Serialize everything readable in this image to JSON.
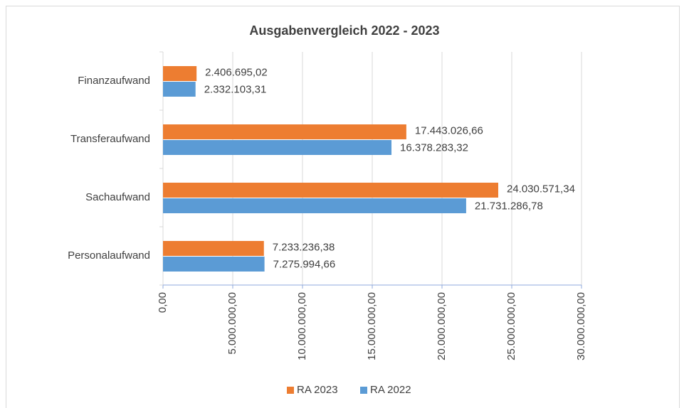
{
  "chart_data": {
    "type": "barh",
    "title": "Ausgabenvergleich 2022 - 2023",
    "categories": [
      "Personalaufwand",
      "Sachaufwand",
      "Transferaufwand",
      "Finanzaufwand"
    ],
    "series": [
      {
        "name": "RA 2023",
        "color": "#ed7d31",
        "values": [
          7233236.38,
          24030571.34,
          17443026.66,
          2406695.02
        ],
        "value_labels": [
          "7.233.236,38",
          "24.030.571,34",
          "17.443.026,66",
          "2.406.695,02"
        ]
      },
      {
        "name": "RA 2022",
        "color": "#5b9bd5",
        "values": [
          7275994.66,
          21731286.78,
          16378283.32,
          2332103.31
        ],
        "value_labels": [
          "7.275.994,66",
          "21.731.286,78",
          "16.378.283,32",
          "2.332.103,31"
        ]
      }
    ],
    "xlim": [
      0,
      30000000
    ],
    "xticks": [
      {
        "value": 0,
        "label": "0,00"
      },
      {
        "value": 5000000,
        "label": "5.000.000,00"
      },
      {
        "value": 10000000,
        "label": "10.000.000,00"
      },
      {
        "value": 15000000,
        "label": "15.000.000,00"
      },
      {
        "value": 20000000,
        "label": "20.000.000,00"
      },
      {
        "value": 25000000,
        "label": "25.000.000,00"
      },
      {
        "value": 30000000,
        "label": "30.000.000,00"
      }
    ],
    "grid": true,
    "legend": "bottom"
  }
}
